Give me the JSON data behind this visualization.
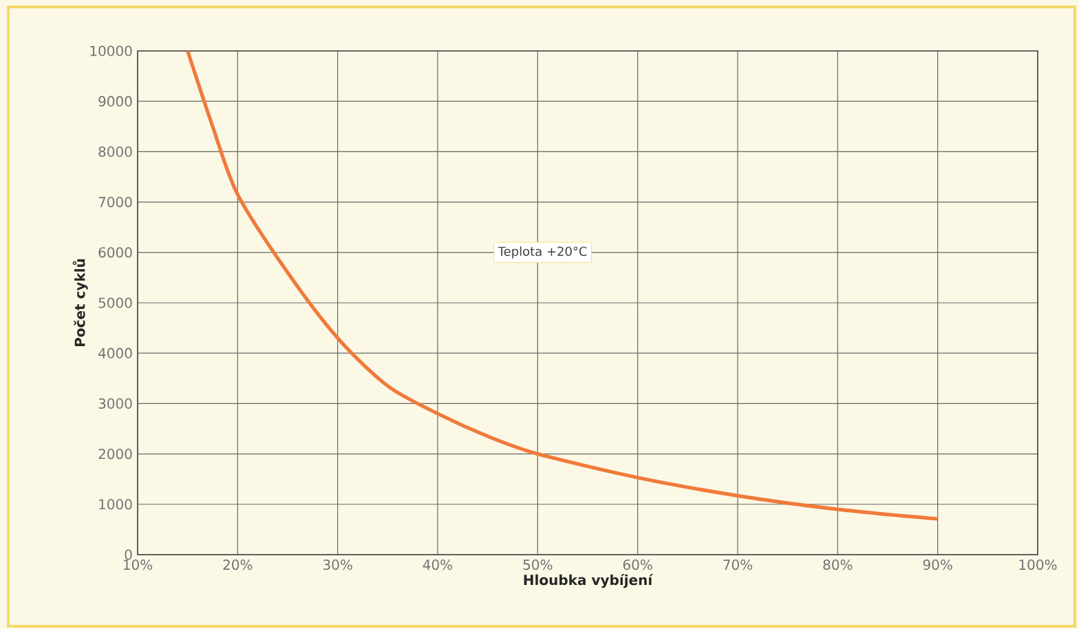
{
  "chart_data": {
    "type": "line",
    "xlabel": "Hloubka vybíjení",
    "ylabel": "Počet cyklů",
    "x": [
      15,
      17.5,
      20,
      25,
      30,
      35,
      40,
      45,
      50,
      60,
      70,
      80,
      90
    ],
    "series": [
      {
        "color": "#f07a3a",
        "values": [
          10000,
          8500,
          7150,
          5600,
          4300,
          3350,
          2800,
          2350,
          2000,
          1530,
          1170,
          900,
          710
        ]
      }
    ],
    "xlim": [
      10,
      100
    ],
    "ylim": [
      0,
      10000
    ],
    "xticks": [
      {
        "value": 10,
        "label": "10%"
      },
      {
        "value": 20,
        "label": "20%"
      },
      {
        "value": 30,
        "label": "30%"
      },
      {
        "value": 40,
        "label": "40%"
      },
      {
        "value": 50,
        "label": "50%"
      },
      {
        "value": 60,
        "label": "60%"
      },
      {
        "value": 70,
        "label": "70%"
      },
      {
        "value": 80,
        "label": "80%"
      },
      {
        "value": 90,
        "label": "90%"
      },
      {
        "value": 100,
        "label": "100%"
      }
    ],
    "yticks": [
      0,
      1000,
      2000,
      3000,
      4000,
      5000,
      6000,
      7000,
      8000,
      9000,
      10000
    ],
    "grid": true,
    "marker": "none",
    "line_style": "solid",
    "annotations": [
      "Teplota +20°C"
    ]
  }
}
